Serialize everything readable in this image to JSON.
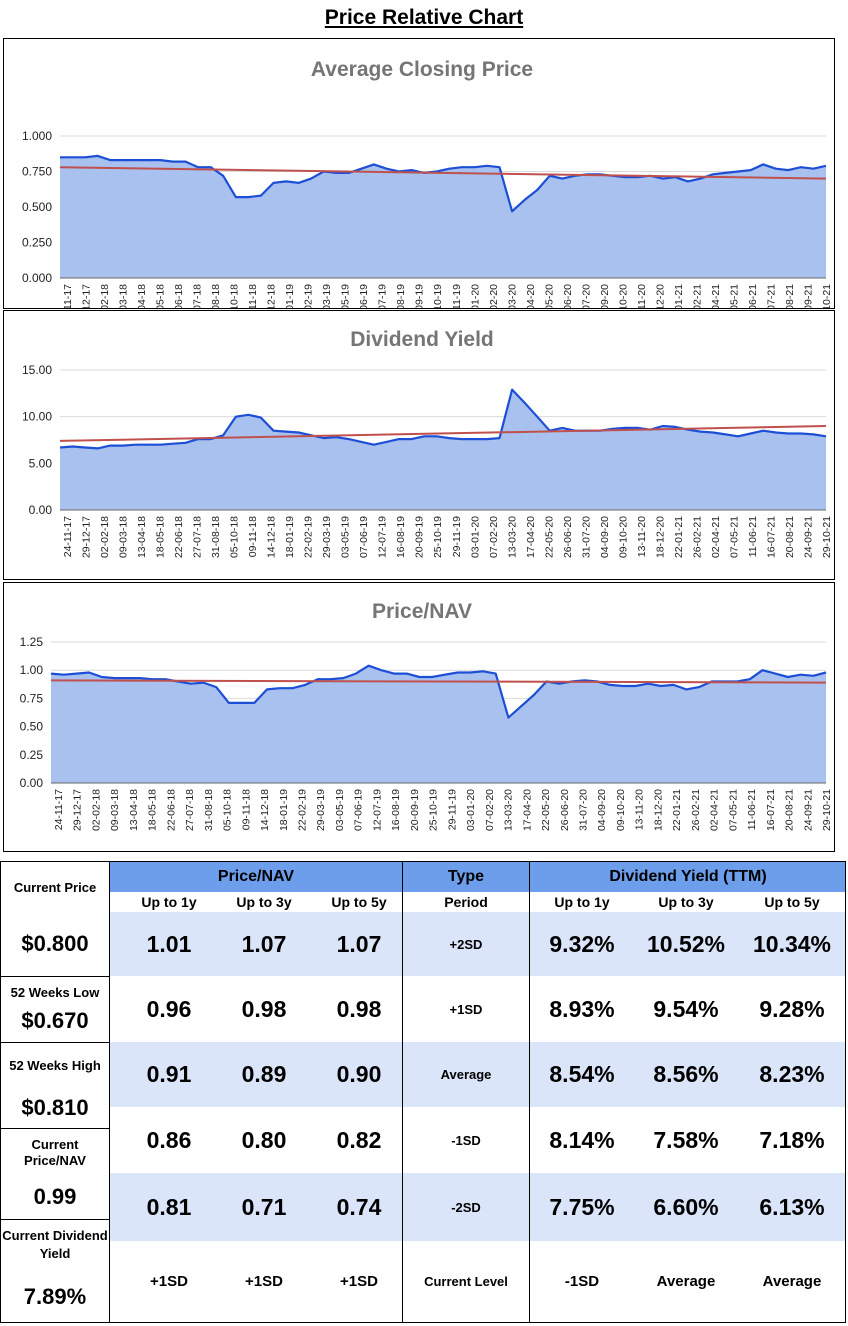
{
  "page": {
    "title": "Price Relative Chart"
  },
  "date_labels": [
    "24-11-17",
    "29-12-17",
    "02-02-18",
    "09-03-18",
    "13-04-18",
    "18-05-18",
    "22-06-18",
    "27-07-18",
    "31-08-18",
    "05-10-18",
    "09-11-18",
    "14-12-18",
    "18-01-19",
    "22-02-19",
    "29-03-19",
    "03-05-19",
    "07-06-19",
    "12-07-19",
    "16-08-19",
    "20-09-19",
    "25-10-19",
    "29-11-19",
    "03-01-20",
    "07-02-20",
    "13-03-20",
    "17-04-20",
    "22-05-20",
    "26-06-20",
    "31-07-20",
    "04-09-20",
    "09-10-20",
    "13-11-20",
    "18-12-20",
    "22-01-21",
    "26-02-21",
    "02-04-21",
    "07-05-21",
    "11-06-21",
    "16-07-21",
    "20-08-21",
    "24-09-21",
    "29-10-21"
  ],
  "chart_data": [
    {
      "type": "area",
      "title": "Average Closing Price",
      "ylim": [
        0,
        1.0
      ],
      "y_ticks": [
        "0.000",
        "0.250",
        "0.500",
        "0.750",
        "1.000"
      ],
      "series": [
        {
          "name": "Average Closing Price",
          "values": [
            0.85,
            0.85,
            0.85,
            0.86,
            0.83,
            0.83,
            0.83,
            0.83,
            0.83,
            0.82,
            0.82,
            0.78,
            0.78,
            0.72,
            0.57,
            0.57,
            0.58,
            0.67,
            0.68,
            0.67,
            0.7,
            0.75,
            0.74,
            0.74,
            0.77,
            0.8,
            0.77,
            0.75,
            0.76,
            0.74,
            0.75,
            0.77,
            0.78,
            0.78,
            0.79,
            0.78,
            0.47,
            0.55,
            0.62,
            0.72,
            0.7,
            0.72,
            0.73,
            0.73,
            0.72,
            0.71,
            0.71,
            0.72,
            0.7,
            0.71,
            0.68,
            0.7,
            0.73,
            0.74,
            0.75,
            0.76,
            0.8,
            0.77,
            0.76,
            0.78,
            0.77,
            0.79
          ]
        },
        {
          "name": "Trend",
          "values": [
            0.78,
            0.7
          ]
        }
      ]
    },
    {
      "type": "area",
      "title": "Dividend Yield",
      "ylim": [
        0,
        15.0
      ],
      "y_ticks": [
        "0.00",
        "5.00",
        "10.00",
        "15.00"
      ],
      "series": [
        {
          "name": "Dividend Yield",
          "values": [
            6.7,
            6.8,
            6.7,
            6.6,
            6.9,
            6.9,
            7.0,
            7.0,
            7.0,
            7.1,
            7.2,
            7.6,
            7.6,
            8.0,
            10.0,
            10.2,
            9.9,
            8.5,
            8.4,
            8.3,
            8.0,
            7.7,
            7.8,
            7.6,
            7.3,
            7.0,
            7.3,
            7.6,
            7.6,
            7.9,
            7.9,
            7.7,
            7.6,
            7.6,
            7.6,
            7.7,
            12.9,
            11.5,
            10.0,
            8.5,
            8.8,
            8.5,
            8.5,
            8.5,
            8.7,
            8.8,
            8.8,
            8.6,
            9.0,
            8.9,
            8.6,
            8.4,
            8.3,
            8.1,
            7.9,
            8.2,
            8.5,
            8.3,
            8.2,
            8.2,
            8.1,
            7.9
          ]
        },
        {
          "name": "Trend",
          "values": [
            7.4,
            9.0
          ]
        }
      ]
    },
    {
      "type": "area",
      "title": "Price/NAV",
      "ylim": [
        0,
        1.25
      ],
      "y_ticks": [
        "0.00",
        "0.25",
        "0.50",
        "0.75",
        "1.00",
        "1.25"
      ],
      "series": [
        {
          "name": "Price/NAV",
          "values": [
            0.97,
            0.96,
            0.97,
            0.98,
            0.94,
            0.93,
            0.93,
            0.93,
            0.92,
            0.92,
            0.9,
            0.88,
            0.89,
            0.85,
            0.71,
            0.71,
            0.71,
            0.83,
            0.84,
            0.84,
            0.87,
            0.92,
            0.92,
            0.93,
            0.97,
            1.04,
            1.0,
            0.97,
            0.97,
            0.94,
            0.94,
            0.96,
            0.98,
            0.98,
            0.99,
            0.97,
            0.58,
            0.68,
            0.78,
            0.9,
            0.88,
            0.9,
            0.91,
            0.9,
            0.87,
            0.86,
            0.86,
            0.88,
            0.86,
            0.87,
            0.83,
            0.85,
            0.9,
            0.9,
            0.9,
            0.92,
            1.0,
            0.97,
            0.94,
            0.96,
            0.95,
            0.98
          ]
        },
        {
          "name": "Trend",
          "values": [
            0.91,
            0.89
          ]
        }
      ]
    }
  ],
  "stats": {
    "current_price_label": "Current Price",
    "current_price": "$0.800",
    "low_label": "52 Weeks Low",
    "low": "$0.670",
    "high_label": "52 Weeks High",
    "high": "$0.810",
    "pnav_label": "Current Price/NAV",
    "pnav": "0.99",
    "dy_label": "Current Dividend Yield",
    "dy": "7.89%"
  },
  "table": {
    "pnav_header": "Price/NAV",
    "type_header": "Type",
    "dy_header": "Dividend Yield (TTM)",
    "sub": [
      "Up to 1y",
      "Up to 3y",
      "Up to 5y",
      "Period",
      "Up to 1y",
      "Up to 3y",
      "Up to 5y"
    ],
    "rows": [
      {
        "p": [
          "1.01",
          "1.07",
          "1.07"
        ],
        "type": "+2SD",
        "d": [
          "9.32%",
          "10.52%",
          "10.34%"
        ]
      },
      {
        "p": [
          "0.96",
          "0.98",
          "0.98"
        ],
        "type": "+1SD",
        "d": [
          "8.93%",
          "9.54%",
          "9.28%"
        ]
      },
      {
        "p": [
          "0.91",
          "0.89",
          "0.90"
        ],
        "type": "Average",
        "d": [
          "8.54%",
          "8.56%",
          "8.23%"
        ]
      },
      {
        "p": [
          "0.86",
          "0.80",
          "0.82"
        ],
        "type": "-1SD",
        "d": [
          "8.14%",
          "7.58%",
          "7.18%"
        ]
      },
      {
        "p": [
          "0.81",
          "0.71",
          "0.74"
        ],
        "type": "-2SD",
        "d": [
          "7.75%",
          "6.60%",
          "6.13%"
        ]
      }
    ],
    "levels": {
      "p": [
        "+1SD",
        "+1SD",
        "+1SD"
      ],
      "type": "Current Level",
      "d": [
        "-1SD",
        "Average",
        "Average"
      ]
    }
  },
  "colors": {
    "line": "#1c4fd6",
    "fill": "#a9c1ee",
    "trend": "#c0504d",
    "header": "#6d9eeb",
    "band": "#dbe5f9"
  }
}
